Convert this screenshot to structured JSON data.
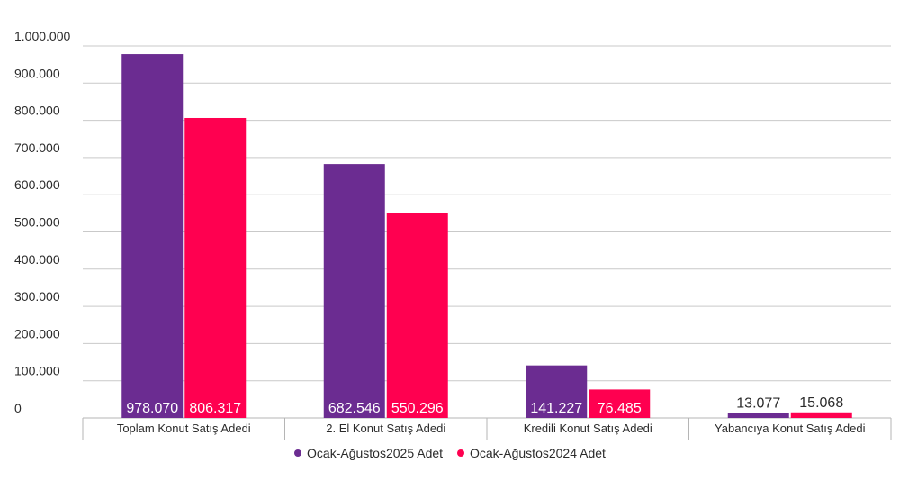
{
  "chart_data": {
    "type": "bar",
    "categories": [
      "Toplam Konut Satış Adedi",
      "2. El Konut Satış Adedi",
      "Kredili Konut Satış Adedi",
      "Yabancıya Konut Satış Adedi"
    ],
    "series": [
      {
        "name": "Ocak-Ağustos2025 Adet",
        "color": "#6b2c91",
        "values": [
          978070,
          682546,
          141227,
          13077
        ],
        "labels": [
          "978.070",
          "682.546",
          "141.227",
          "13.077"
        ]
      },
      {
        "name": "Ocak-Ağustos2024 Adet",
        "color": "#ff0050",
        "values": [
          806317,
          550296,
          76485,
          15068
        ],
        "labels": [
          "806.317",
          "550.296",
          "76.485",
          "15.068"
        ]
      }
    ],
    "yticks": [
      0,
      100000,
      200000,
      300000,
      400000,
      500000,
      600000,
      700000,
      800000,
      900000,
      1000000
    ],
    "ytick_labels": [
      "0",
      "100.000",
      "200.000",
      "300.000",
      "400.000",
      "500.000",
      "600.000",
      "700.000",
      "800.000",
      "900.000",
      "1.000.000"
    ],
    "ylim": [
      0,
      1000000
    ],
    "grid": true,
    "legend_position": "bottom-center"
  }
}
